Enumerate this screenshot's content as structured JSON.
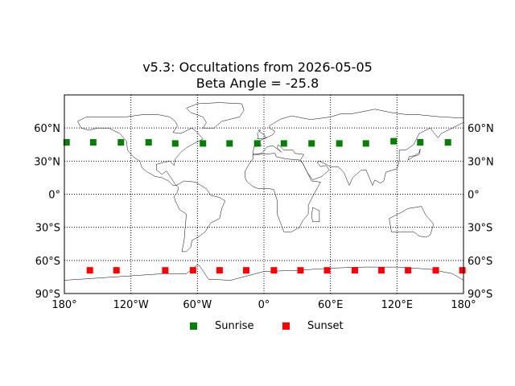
{
  "title_line1": "v5.3: Occultations from 2026-05-05",
  "title_line2": "Beta Angle = -25.8",
  "legend": {
    "sunrise": {
      "label": "Sunrise",
      "color": "#008000"
    },
    "sunset": {
      "label": "Sunset",
      "color": "#ff0000"
    },
    "placement": "below plot, centered"
  },
  "map": {
    "projection": "equirectangular",
    "lon_range": [
      -180,
      180
    ],
    "lat_range": [
      -90,
      90
    ],
    "grid": "dotted black lines every 60° lon and 30° lat",
    "coastlines": "thin black outlines"
  },
  "chart_data": {
    "type": "scatter",
    "xlim": [
      -180,
      180
    ],
    "ylim": [
      -90,
      90
    ],
    "x_ticks": [
      {
        "value": -180,
        "label": "180°"
      },
      {
        "value": -120,
        "label": "120°W"
      },
      {
        "value": -60,
        "label": "60°W"
      },
      {
        "value": 0,
        "label": "0°"
      },
      {
        "value": 60,
        "label": "60°E"
      },
      {
        "value": 120,
        "label": "120°E"
      },
      {
        "value": 180,
        "label": "180°"
      }
    ],
    "y_ticks": [
      {
        "value": 60,
        "label": "60°N"
      },
      {
        "value": 30,
        "label": "30°N"
      },
      {
        "value": 0,
        "label": "0°"
      },
      {
        "value": -30,
        "label": "30°S"
      },
      {
        "value": -60,
        "label": "60°S"
      },
      {
        "value": -90,
        "label": "90°S"
      }
    ],
    "series": [
      {
        "name": "Sunrise",
        "color": "#008000",
        "marker": "square",
        "points": [
          [
            -178,
            47
          ],
          [
            -154,
            47
          ],
          [
            -129,
            47
          ],
          [
            -104,
            47
          ],
          [
            -80,
            46
          ],
          [
            -55,
            46
          ],
          [
            -31,
            46
          ],
          [
            -6,
            46
          ],
          [
            18,
            46
          ],
          [
            43,
            46
          ],
          [
            68,
            46
          ],
          [
            92,
            46
          ],
          [
            117,
            48
          ],
          [
            141,
            47
          ],
          [
            166,
            47
          ]
        ]
      },
      {
        "name": "Sunset",
        "color": "#ff0000",
        "marker": "square",
        "points": [
          [
            -157,
            -69
          ],
          [
            -133,
            -69
          ],
          [
            -89,
            -69
          ],
          [
            -64,
            -69
          ],
          [
            -40,
            -69
          ],
          [
            -16,
            -69
          ],
          [
            9,
            -69
          ],
          [
            33,
            -69
          ],
          [
            57,
            -69
          ],
          [
            82,
            -69
          ],
          [
            106,
            -69
          ],
          [
            130,
            -69
          ],
          [
            155,
            -69
          ],
          [
            179,
            -69
          ]
        ]
      }
    ]
  }
}
